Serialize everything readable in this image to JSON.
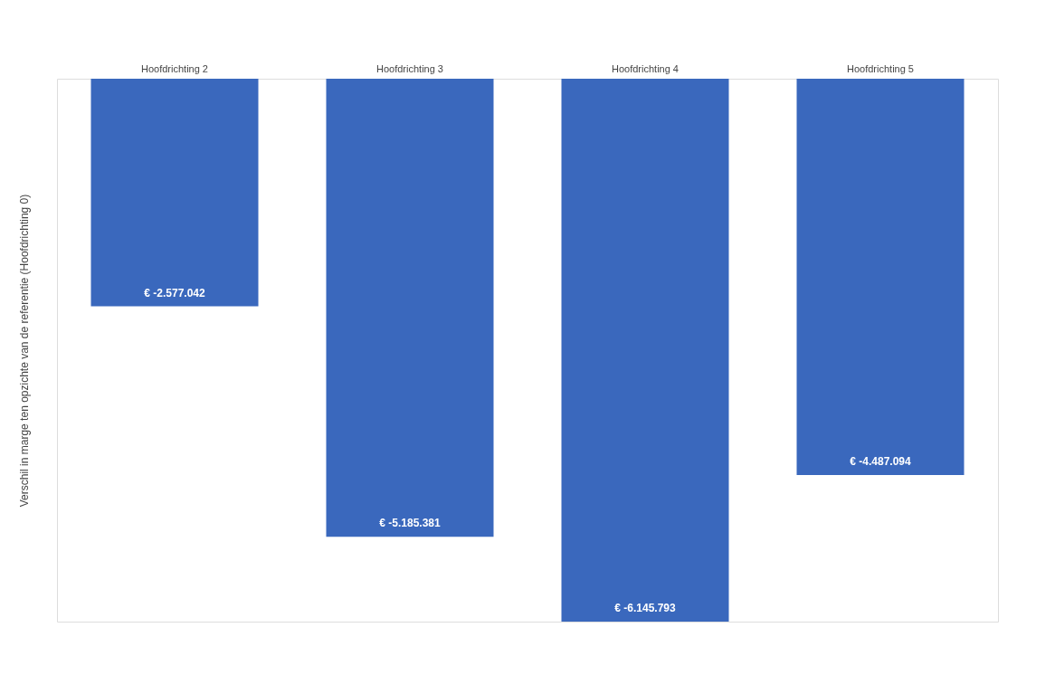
{
  "chart_data": {
    "type": "bar",
    "ylabel": "Verschil in marge ten opzichte van de referentie (Hoofdrichting 0)",
    "categories": [
      "Hoofdrichting 2",
      "Hoofdrichting 3",
      "Hoofdrichting 4",
      "Hoofdrichting 5"
    ],
    "values": [
      -2577042,
      -5185381,
      -6145793,
      -4487094
    ],
    "value_labels": [
      "€ -2.577.042",
      "€ -5.185.381",
      "€ -6.145.793",
      "€ -4.487.094"
    ],
    "color": "#3a68bd",
    "tick_labels": "x",
    "grid": false
  }
}
